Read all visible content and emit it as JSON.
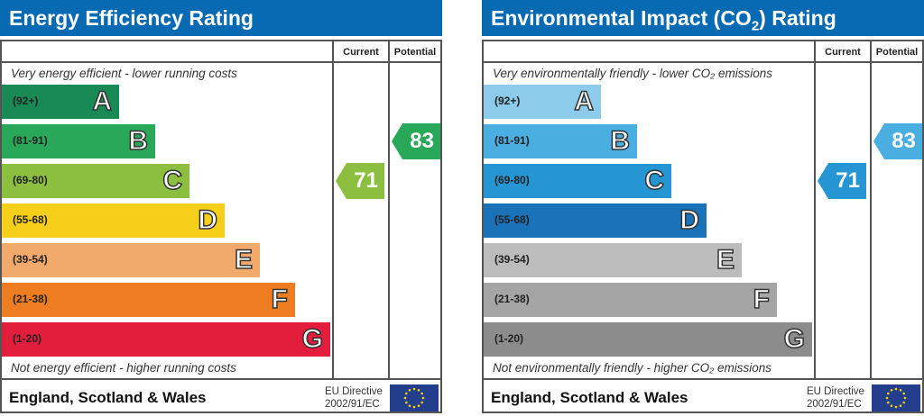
{
  "charts": [
    {
      "title": "Energy Efficiency Rating",
      "title_sub": "",
      "col_current": "Current",
      "col_potential": "Potential",
      "top_note": "Very energy efficient - lower running costs",
      "bottom_note": "Not energy efficient - higher running costs",
      "region": "England, Scotland & Wales",
      "eu_line1": "EU Directive",
      "eu_line2": "2002/91/EC",
      "current": 71,
      "current_band": "C",
      "current_color": "#8cbf40",
      "potential": 83,
      "potential_band": "B",
      "potential_color": "#2aa85a"
    },
    {
      "title": "Environmental Impact (CO",
      "title_sub": "2",
      "title_end": ") Rating",
      "col_current": "Current",
      "col_potential": "Potential",
      "top_note": "Very environmentally friendly - lower CO₂ emissions",
      "bottom_note": "Not environmentally friendly - higher CO₂ emissions",
      "region": "England, Scotland & Wales",
      "eu_line1": "EU Directive",
      "eu_line2": "2002/91/EC",
      "current": 71,
      "current_band": "C",
      "current_color": "#2596d3",
      "potential": 83,
      "potential_band": "B",
      "potential_color": "#4aaee0"
    }
  ],
  "chart_data": [
    {
      "type": "bar",
      "title": "Energy Efficiency Rating",
      "categories": [
        "A",
        "B",
        "C",
        "D",
        "E",
        "F",
        "G"
      ],
      "ranges": [
        "(92+)",
        "(81-91)",
        "(69-80)",
        "(55-68)",
        "(39-54)",
        "(21-38)",
        "(1-20)"
      ],
      "colors": [
        "#1a8a55",
        "#2aa85a",
        "#8cbf40",
        "#f6cf1b",
        "#f2a96c",
        "#ee7d22",
        "#e31d3c"
      ],
      "current": 71,
      "potential": 83
    },
    {
      "type": "bar",
      "title": "Environmental Impact (CO2) Rating",
      "categories": [
        "A",
        "B",
        "C",
        "D",
        "E",
        "F",
        "G"
      ],
      "ranges": [
        "(92+)",
        "(81-91)",
        "(69-80)",
        "(55-68)",
        "(39-54)",
        "(21-38)",
        "(1-20)"
      ],
      "colors": [
        "#8ccbe9",
        "#4aaee0",
        "#2596d3",
        "#1a72b8",
        "#bcbcbc",
        "#a5a5a5",
        "#8c8c8c"
      ],
      "current": 71,
      "potential": 83
    }
  ]
}
